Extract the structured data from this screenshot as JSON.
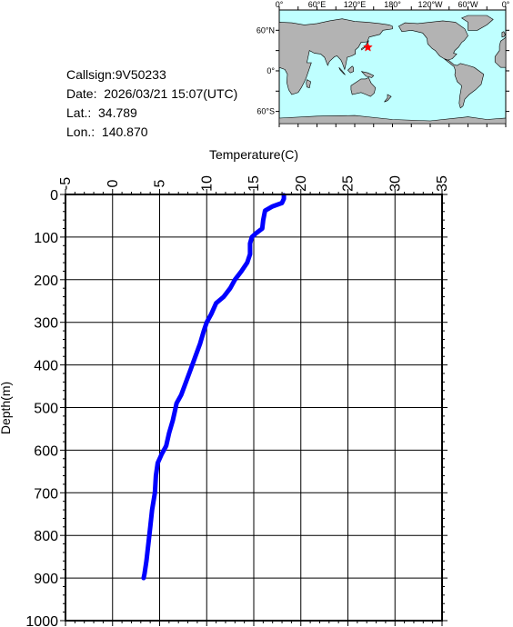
{
  "info": {
    "callsign": "Callsign:9V50233",
    "date": "Date:  2026/03/21 15:07(UTC)",
    "lat": "Lat.:  34.789",
    "lon": "Lon.:  140.870"
  },
  "map": {
    "top_labels": [
      "0°",
      "60°E",
      "120°E",
      "180°",
      "120°W",
      "60°W",
      "0°"
    ],
    "left_labels": [
      "60°N",
      "0°",
      "60°S"
    ],
    "ocean_color": "#bfffff",
    "land_color": "#b3b3b3",
    "marker": {
      "lat": 34.789,
      "lon": 140.87,
      "color": "#ff0000",
      "symbol": "star"
    }
  },
  "chart_data": {
    "type": "line",
    "xlabel": "Temperature(C)",
    "ylabel": "Depth(m)",
    "xlim": [
      -5,
      35
    ],
    "ylim": [
      0,
      1000
    ],
    "x_axis_position": "top",
    "y_inverted": true,
    "grid": true,
    "xticks": [
      -5,
      0,
      5,
      10,
      15,
      20,
      25,
      30,
      35
    ],
    "yticks": [
      0,
      100,
      200,
      300,
      400,
      500,
      600,
      700,
      800,
      900,
      1000
    ],
    "series": [
      {
        "color": "#0000ff",
        "points": [
          [
            18.2,
            2
          ],
          [
            18.2,
            10
          ],
          [
            18.0,
            20
          ],
          [
            17.0,
            28
          ],
          [
            16.2,
            38
          ],
          [
            16.0,
            60
          ],
          [
            15.9,
            80
          ],
          [
            15.3,
            90
          ],
          [
            14.8,
            100
          ],
          [
            14.6,
            115
          ],
          [
            14.6,
            140
          ],
          [
            14.3,
            160
          ],
          [
            13.7,
            180
          ],
          [
            13.0,
            200
          ],
          [
            12.5,
            220
          ],
          [
            11.8,
            240
          ],
          [
            11.0,
            255
          ],
          [
            10.5,
            280
          ],
          [
            10.0,
            300
          ],
          [
            9.7,
            320
          ],
          [
            9.3,
            350
          ],
          [
            8.8,
            380
          ],
          [
            8.3,
            410
          ],
          [
            7.8,
            440
          ],
          [
            7.3,
            470
          ],
          [
            6.8,
            490
          ],
          [
            6.6,
            510
          ],
          [
            6.4,
            530
          ],
          [
            6.0,
            560
          ],
          [
            5.7,
            590
          ],
          [
            5.2,
            610
          ],
          [
            4.8,
            630
          ],
          [
            4.6,
            660
          ],
          [
            4.5,
            700
          ],
          [
            4.2,
            740
          ],
          [
            4.0,
            780
          ],
          [
            3.8,
            820
          ],
          [
            3.6,
            860
          ],
          [
            3.4,
            890
          ],
          [
            3.3,
            900
          ]
        ]
      }
    ]
  }
}
